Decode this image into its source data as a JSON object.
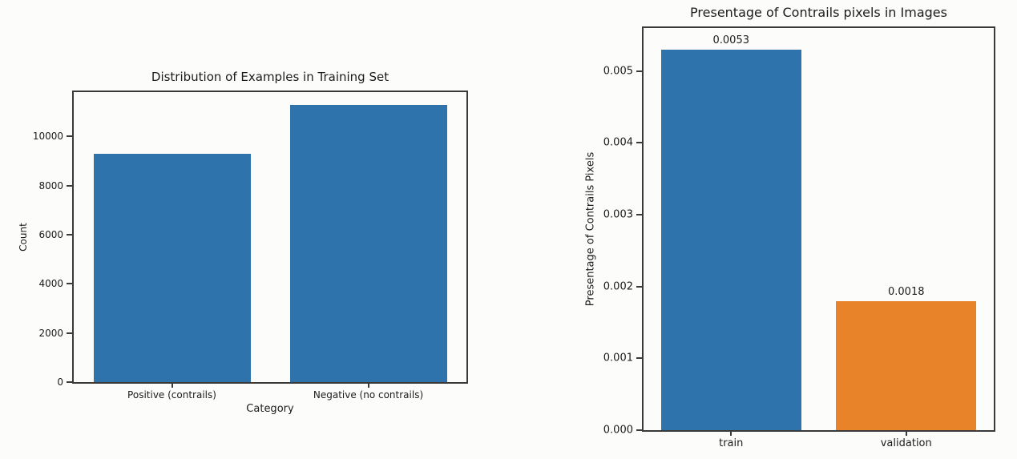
{
  "page": {
    "background": "#fcfcfb",
    "axis_color": "#3a3a3a",
    "text_color": "#1c1c1c"
  },
  "chart_data": [
    {
      "id": "training-set-distribution",
      "type": "bar",
      "title": "Distribution of Examples in Training Set",
      "xlabel": "Category",
      "ylabel": "Count",
      "categories": [
        "Positive (contrails)",
        "Negative (no contrails)"
      ],
      "values": [
        9290,
        11290
      ],
      "bar_colors": [
        "#2e73ab",
        "#2e73ab"
      ],
      "ylim": [
        0,
        11800
      ],
      "yticks": [
        0,
        2000,
        4000,
        6000,
        8000,
        10000
      ],
      "ytick_labels": [
        "0",
        "2000",
        "4000",
        "6000",
        "8000",
        "10000"
      ],
      "show_values": false,
      "value_labels": [],
      "grid": false,
      "legend": null,
      "bar_width_fraction": 0.8
    },
    {
      "id": "contrail-pixel-percentage",
      "type": "bar",
      "title": "Presentage of Contrails pixels in Images",
      "xlabel": "",
      "ylabel": "Presentage of Contrails Pixels",
      "categories": [
        "train",
        "validation"
      ],
      "values": [
        0.0053,
        0.0018
      ],
      "bar_colors": [
        "#2e73ab",
        "#e8832a"
      ],
      "ylim": [
        0,
        0.0056
      ],
      "yticks": [
        0,
        0.001,
        0.002,
        0.003,
        0.004,
        0.005
      ],
      "ytick_labels": [
        "0.000",
        "0.001",
        "0.002",
        "0.003",
        "0.004",
        "0.005"
      ],
      "show_values": true,
      "value_labels": [
        "0.0053",
        "0.0018"
      ],
      "grid": false,
      "legend": null,
      "bar_width_fraction": 0.8
    }
  ]
}
